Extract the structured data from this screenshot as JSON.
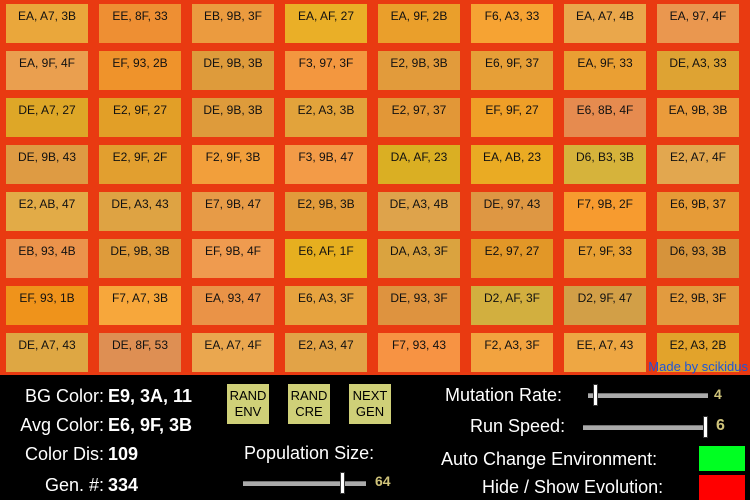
{
  "environment": {
    "bg_color": "#e93a11"
  },
  "credit": "Made by scikidus",
  "creatures": [
    "EA, A7, 3B",
    "EE, 8F, 33",
    "EB, 9B, 3F",
    "EA, AF, 27",
    "EA, 9F, 2B",
    "F6, A3, 33",
    "EA, A7, 4B",
    "EA, 97, 4F",
    "EA, 9F, 4F",
    "EF, 93, 2B",
    "DE, 9B, 3B",
    "F3, 97, 3F",
    "E2, 9B, 3B",
    "E6, 9F, 37",
    "EA, 9F, 33",
    "DE, A3, 33",
    "DE, A7, 27",
    "E2, 9F, 27",
    "DE, 9B, 3B",
    "E2, A3, 3B",
    "E2, 97, 37",
    "EF, 9F, 27",
    "E6, 8B, 4F",
    "EA, 9B, 3B",
    "DE, 9B, 43",
    "E2, 9F, 2F",
    "F2, 9F, 3B",
    "F3, 9B, 47",
    "DA, AF, 23",
    "EA, AB, 23",
    "D6, B3, 3B",
    "E2, A7, 4F",
    "E2, AB, 47",
    "DE, A3, 43",
    "E7, 9B, 47",
    "E2, 9B, 3B",
    "DE, A3, 4B",
    "DE, 97, 43",
    "F7, 9B, 2F",
    "E6, 9B, 37",
    "EB, 93, 4B",
    "DE, 9B, 3B",
    "EF, 9B, 4F",
    "E6, AF, 1F",
    "DA, A3, 3F",
    "E2, 97, 27",
    "E7, 9F, 33",
    "D6, 93, 3B",
    "EF, 93, 1B",
    "F7, A7, 3B",
    "EA, 93, 47",
    "E6, A3, 3F",
    "DE, 93, 3F",
    "D2, AF, 3F",
    "D2, 9F, 47",
    "E2, 9B, 3F",
    "DE, A7, 43",
    "DE, 8F, 53",
    "EA, A7, 4F",
    "E2, A3, 47",
    "F7, 93, 43",
    "F2, A3, 3F",
    "EE, A7, 43",
    "E2, A3, 2B"
  ],
  "stats": {
    "bg_color_label": "BG Color:",
    "bg_color_value": "E9, 3A, 11",
    "avg_color_label": "Avg Color:",
    "avg_color_value": "E6, 9F, 3B",
    "color_dis_label": "Color Dis:",
    "color_dis_value": "109",
    "gen_label": "Gen. #:",
    "gen_value": "334"
  },
  "buttons": {
    "rand_env": [
      "RAND",
      "ENV"
    ],
    "rand_cre": [
      "RAND",
      "CRE"
    ],
    "next_gen": [
      "NEXT",
      "GEN"
    ]
  },
  "controls": {
    "population_label": "Population Size:",
    "population_value": "64",
    "population_fraction": 0.82,
    "mutation_label": "Mutation Rate:",
    "mutation_value": "4",
    "mutation_fraction": 0.04,
    "speed_label": "Run Speed:",
    "speed_value": "6",
    "speed_fraction": 1.0,
    "auto_change_label": "Auto Change Environment:",
    "auto_change_color": "#00ff22",
    "hide_show_label": "Hide / Show Evolution:",
    "hide_show_color": "#ff0000"
  }
}
